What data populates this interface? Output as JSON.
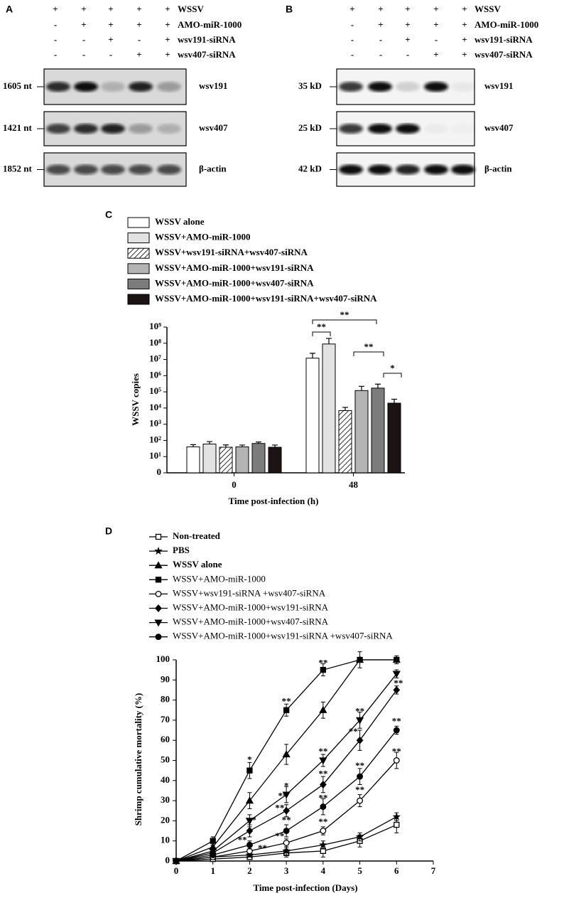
{
  "panels": {
    "A": {
      "label": "A",
      "conditions": [
        {
          "marks": [
            "+",
            "+",
            "+",
            "+",
            "+"
          ],
          "label": "WSSV"
        },
        {
          "marks": [
            "-",
            "+",
            "+",
            "+",
            "+"
          ],
          "label": "AMO-miR-1000"
        },
        {
          "marks": [
            "-",
            "-",
            "+",
            "-",
            "+"
          ],
          "label": "wsv191-siRNA"
        },
        {
          "marks": [
            "-",
            "-",
            "-",
            "+",
            "+"
          ],
          "label": "wsv407-siRNA"
        }
      ],
      "blots": [
        {
          "size": "1605 nt",
          "name": "wsv191"
        },
        {
          "size": "1421 nt",
          "name": "wsv407"
        },
        {
          "size": "1852 nt",
          "name": "β-actin"
        }
      ]
    },
    "B": {
      "label": "B",
      "conditions": [
        {
          "marks": [
            "+",
            "+",
            "+",
            "+",
            "+"
          ],
          "label": "WSSV"
        },
        {
          "marks": [
            "-",
            "+",
            "+",
            "+",
            "+"
          ],
          "label": "AMO-miR-1000"
        },
        {
          "marks": [
            "-",
            "-",
            "+",
            "-",
            "+"
          ],
          "label": "wsv191-siRNA"
        },
        {
          "marks": [
            "-",
            "-",
            "-",
            "+",
            "+"
          ],
          "label": "wsv407-siRNA"
        }
      ],
      "blots": [
        {
          "size": "35 kD",
          "name": "wsv191"
        },
        {
          "size": "25 kD",
          "name": "wsv407"
        },
        {
          "size": "42 kD",
          "name": "β-actin"
        }
      ]
    }
  },
  "chart_data": [
    {
      "type": "bar",
      "panel_label": "C",
      "x_label": "Time post-infection (h)",
      "y_label": "WSSV copies",
      "categories": [
        "0",
        "48"
      ],
      "log_scale": true,
      "ylim": [
        1,
        1000000000
      ],
      "yticks": [
        {
          "value": 1,
          "label": "0"
        },
        {
          "value": 10,
          "label": "10¹"
        },
        {
          "value": 100,
          "label": "10²"
        },
        {
          "value": 1000,
          "label": "10³"
        },
        {
          "value": 10000,
          "label": "10⁴"
        },
        {
          "value": 100000,
          "label": "10⁵"
        },
        {
          "value": 1000000,
          "label": "10⁶"
        },
        {
          "value": 10000000,
          "label": "10⁷"
        },
        {
          "value": 100000000,
          "label": "10⁸"
        },
        {
          "value": 1000000000,
          "label": "10⁹"
        }
      ],
      "series": [
        {
          "name": "WSSV alone",
          "color": "#ffffff",
          "values": [
            40,
            12000000
          ],
          "errors": [
            15,
            12000000
          ]
        },
        {
          "name": "WSSV+AMO-miR-1000",
          "color": "#e2e2e2",
          "values": [
            60,
            90000000
          ],
          "errors": [
            25,
            110000000
          ]
        },
        {
          "name": "WSSV+wsv191-siRNA+wsv407-siRNA",
          "color": "#ffffff",
          "hatch": true,
          "values": [
            38,
            7000
          ],
          "errors": [
            15,
            4000
          ]
        },
        {
          "name": "WSSV+AMO-miR-1000+wsv191-siRNA",
          "color": "#b4b4b4",
          "values": [
            40,
            120000
          ],
          "errors": [
            12,
            100000
          ]
        },
        {
          "name": "WSSV+AMO-miR-1000+wsv407-siRNA",
          "color": "#7c7c7c",
          "values": [
            65,
            170000
          ],
          "errors": [
            15,
            130000
          ]
        },
        {
          "name": "WSSV+AMO-miR-1000+wsv191-siRNA+wsv407-siRNA",
          "color": "#1c1414",
          "values": [
            38,
            20000
          ],
          "errors": [
            14,
            15000
          ]
        }
      ],
      "annotations": [
        "**",
        "**",
        "**",
        "*"
      ]
    },
    {
      "type": "line",
      "panel_label": "D",
      "x_label": "Time post-infection (Days)",
      "y_label": "Shrimp cumulative mortality (%)",
      "x": [
        0,
        1,
        2,
        3,
        4,
        5,
        6
      ],
      "xlim": [
        0,
        7
      ],
      "xticks": [
        0,
        1,
        2,
        3,
        4,
        5,
        6,
        7
      ],
      "ylim": [
        0,
        100
      ],
      "yticks": [
        0,
        10,
        20,
        30,
        40,
        50,
        60,
        70,
        80,
        90,
        100
      ],
      "series": [
        {
          "name": "Non-treated",
          "color": "#000000",
          "marker": "square-open",
          "values": [
            0,
            1,
            2,
            4,
            5,
            10,
            18
          ],
          "errors": [
            0,
            1,
            1,
            2,
            3,
            3,
            4
          ]
        },
        {
          "name": "PBS",
          "color": "#000000",
          "marker": "star",
          "values": [
            0,
            2,
            3,
            5,
            8,
            12,
            22
          ],
          "errors": [
            0,
            1,
            1,
            2,
            2,
            2,
            2
          ]
        },
        {
          "name": "WSSV alone",
          "color": "#000000",
          "marker": "triangle",
          "values": [
            0,
            7,
            30,
            53,
            75,
            100,
            100
          ],
          "errors": [
            0,
            2,
            4,
            5,
            4,
            4,
            0
          ]
        },
        {
          "name": "WSSV+AMO-miR-1000",
          "color": "#000000",
          "marker": "square",
          "values": [
            0,
            10,
            45,
            75,
            95,
            100,
            100
          ],
          "errors": [
            0,
            2,
            4,
            3,
            3,
            0,
            2
          ]
        },
        {
          "name": "WSSV+wsv191-siRNA +wsv407-siRNA",
          "color": "#000000",
          "marker": "circle-open",
          "values": [
            0,
            2,
            5,
            9,
            15,
            30,
            50
          ],
          "errors": [
            0,
            1,
            2,
            2,
            2,
            3,
            4
          ]
        },
        {
          "name": "WSSV+AMO-miR-1000+wsv191-siRNA",
          "color": "#000000",
          "marker": "diamond",
          "values": [
            0,
            4,
            15,
            25,
            38,
            60,
            85
          ],
          "errors": [
            0,
            2,
            3,
            3,
            4,
            5,
            2
          ]
        },
        {
          "name": "WSSV+AMO-miR-1000+wsv407-siRNA",
          "color": "#000000",
          "marker": "triangle-down",
          "values": [
            0,
            5,
            20,
            33,
            50,
            70,
            93
          ],
          "errors": [
            0,
            2,
            3,
            4,
            3,
            4,
            2
          ]
        },
        {
          "name": "WSSV+AMO-miR-1000+wsv191-siRNA +wsv407-siRNA",
          "color": "#000000",
          "marker": "circle",
          "values": [
            0,
            3,
            8,
            15,
            27,
            42,
            65
          ],
          "errors": [
            0,
            1,
            2,
            3,
            4,
            4,
            2
          ]
        }
      ],
      "annotations": [
        "*",
        "*",
        "**",
        "**",
        "**",
        "*",
        "**",
        "**",
        "**",
        "**",
        "**",
        "**",
        "**",
        "**",
        "**",
        "**",
        "**",
        "**",
        "**",
        "**",
        "**",
        "**"
      ]
    }
  ]
}
